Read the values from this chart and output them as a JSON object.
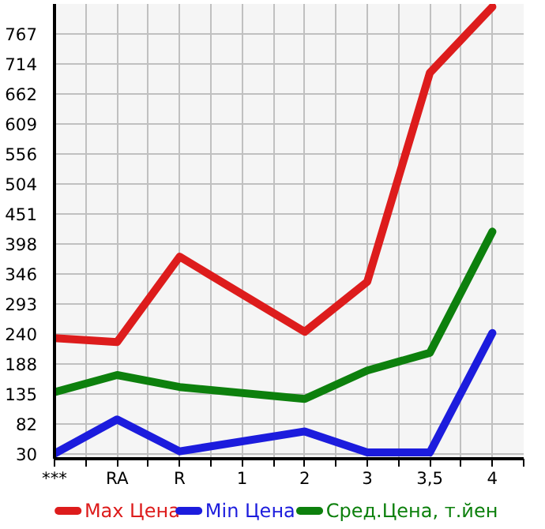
{
  "chart_data": {
    "type": "line",
    "categories": [
      "***",
      "RA",
      "R",
      "1",
      "2",
      "3",
      "3,5",
      "4"
    ],
    "series": [
      {
        "name": "Max Цена",
        "color": "#dd1c1c",
        "values": [
          233,
          226,
          376,
          null,
          244,
          332,
          699,
          815
        ]
      },
      {
        "name": "Min Цена",
        "color": "#1c1cdd",
        "values": [
          30,
          90,
          34,
          null,
          69,
          32,
          32,
          242
        ]
      },
      {
        "name": "Сред.Цена, т.йен",
        "color": "#0d800d",
        "values": [
          138,
          168,
          147,
          null,
          126,
          176,
          207,
          420
        ]
      }
    ],
    "ylim": [
      21,
      820
    ],
    "yticks": [
      30,
      82,
      135,
      188,
      240,
      293,
      346,
      398,
      451,
      504,
      556,
      609,
      662,
      714,
      767
    ],
    "grid": true,
    "legend": "bottom",
    "marker": "none",
    "line_style": "solid"
  }
}
